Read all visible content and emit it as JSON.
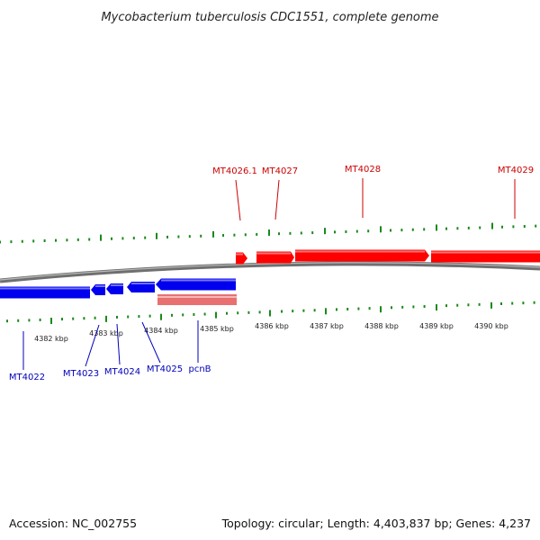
{
  "title": "Mycobacterium tuberculosis CDC1551, complete genome",
  "footer": {
    "accession": "Accession: NC_002755",
    "summary": "Topology: circular; Length: 4,403,837 bp; Genes: 4,237"
  },
  "colors": {
    "forward_gene": "#ff0000",
    "reverse_gene": "#0000ee",
    "rna_gene": "#e87070",
    "tick": "#1a8a1a",
    "backbone": "#7a7a7a",
    "forward_label": "#cc0000",
    "reverse_label": "#0000bb"
  },
  "scale": {
    "tick_labels": [
      "4382 kbp",
      "4383 kbp",
      "4384 kbp",
      "4385 kbp",
      "4386 kbp",
      "4387 kbp",
      "4388 kbp",
      "4389 kbp",
      "4390 kbp"
    ]
  },
  "genes_forward": [
    {
      "label": "MT4026.1"
    },
    {
      "label": "MT4027"
    },
    {
      "label": "MT4028"
    },
    {
      "label": "MT4029"
    }
  ],
  "genes_reverse": [
    {
      "label": "MT4022"
    },
    {
      "label": "MT4023"
    },
    {
      "label": "MT4024"
    },
    {
      "label": "MT4025"
    },
    {
      "label": "pcnB"
    }
  ]
}
